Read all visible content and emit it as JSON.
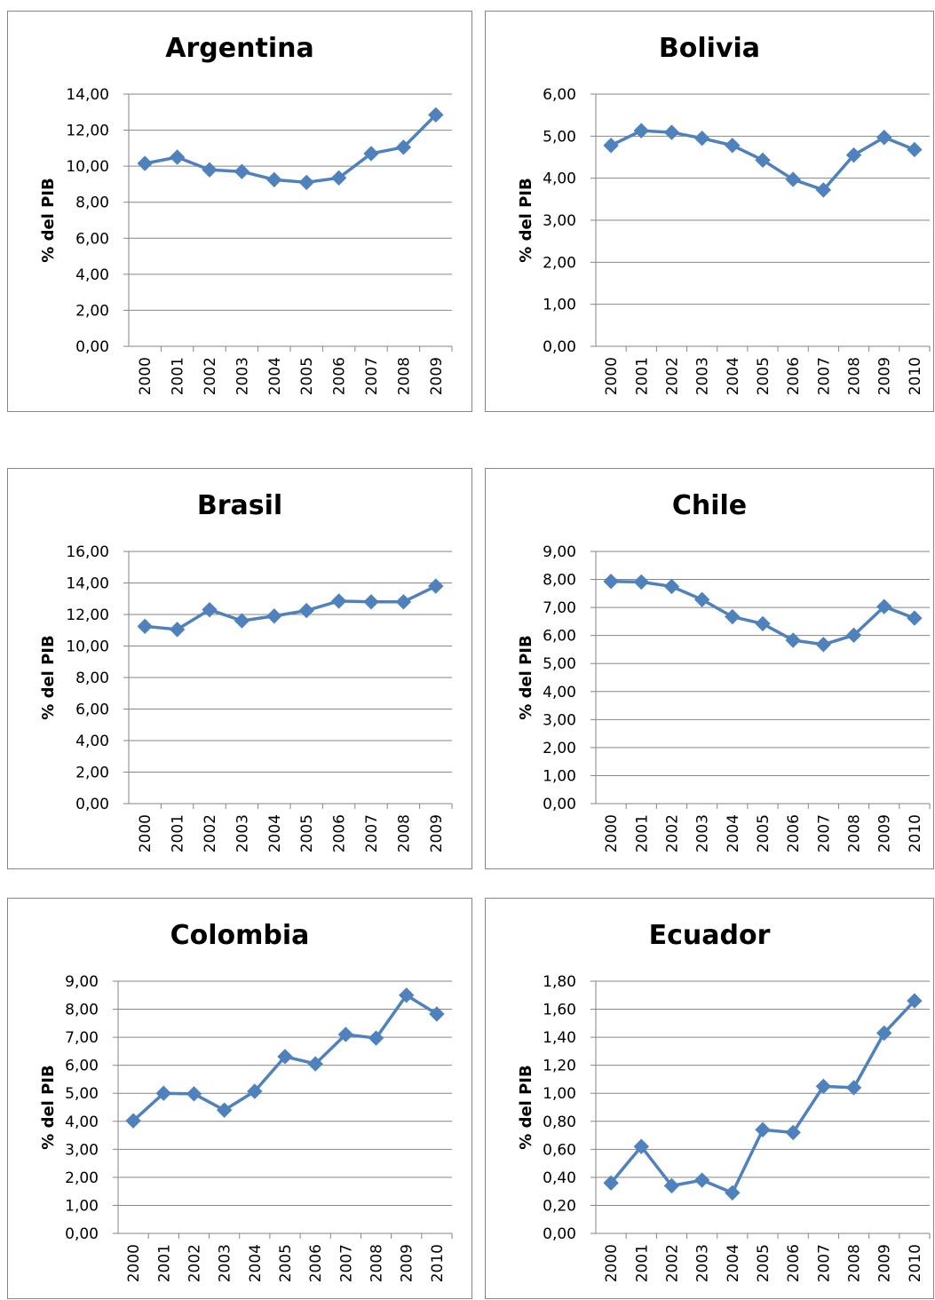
{
  "colors": {
    "series": "#4f81bd",
    "grid": "#868686",
    "axis": "#868686",
    "text": "#000000"
  },
  "chart_data": [
    {
      "type": "line",
      "title": "Argentina",
      "ylabel": "% del PIB",
      "ylim": [
        0,
        14
      ],
      "yticks": [
        "0,00",
        "2,00",
        "4,00",
        "6,00",
        "8,00",
        "10,00",
        "12,00",
        "14,00"
      ],
      "categories": [
        "2000",
        "2001",
        "2002",
        "2003",
        "2004",
        "2005",
        "2006",
        "2007",
        "2008",
        "2009"
      ],
      "values": [
        10.15,
        10.5,
        9.8,
        9.7,
        9.25,
        9.1,
        9.35,
        10.7,
        11.05,
        12.85
      ],
      "grid": true,
      "marker": "diamond"
    },
    {
      "type": "line",
      "title": "Bolivia",
      "ylabel": "% del PIB",
      "ylim": [
        0,
        6
      ],
      "yticks": [
        "0,00",
        "1,00",
        "2,00",
        "3,00",
        "4,00",
        "5,00",
        "6,00"
      ],
      "categories": [
        "2000",
        "2001",
        "2002",
        "2003",
        "2004",
        "2005",
        "2006",
        "2007",
        "2008",
        "2009",
        "2010"
      ],
      "values": [
        4.78,
        5.13,
        5.09,
        4.95,
        4.78,
        4.43,
        3.97,
        3.72,
        4.55,
        4.97,
        4.68
      ],
      "grid": true,
      "marker": "diamond"
    },
    {
      "type": "line",
      "title": "Brasil",
      "ylabel": "% del PIB",
      "ylim": [
        0,
        16
      ],
      "yticks": [
        "0,00",
        "2,00",
        "4,00",
        "6,00",
        "8,00",
        "10,00",
        "12,00",
        "14,00",
        "16,00"
      ],
      "categories": [
        "2000",
        "2001",
        "2002",
        "2003",
        "2004",
        "2005",
        "2006",
        "2007",
        "2008",
        "2009"
      ],
      "values": [
        11.25,
        11.05,
        12.3,
        11.6,
        11.9,
        12.25,
        12.85,
        12.8,
        12.8,
        13.8
      ],
      "grid": true,
      "marker": "diamond"
    },
    {
      "type": "line",
      "title": "Chile",
      "ylabel": "% del PIB",
      "ylim": [
        0,
        9
      ],
      "yticks": [
        "0,00",
        "1,00",
        "2,00",
        "3,00",
        "4,00",
        "5,00",
        "6,00",
        "7,00",
        "8,00",
        "9,00"
      ],
      "categories": [
        "2000",
        "2001",
        "2002",
        "2003",
        "2004",
        "2005",
        "2006",
        "2007",
        "2008",
        "2009",
        "2010"
      ],
      "values": [
        7.93,
        7.91,
        7.75,
        7.28,
        6.67,
        6.42,
        5.83,
        5.68,
        6.01,
        7.03,
        6.62
      ],
      "grid": true,
      "marker": "diamond"
    },
    {
      "type": "line",
      "title": "Colombia",
      "ylabel": "% del PIB",
      "ylim": [
        0,
        9
      ],
      "yticks": [
        "0,00",
        "1,00",
        "2,00",
        "3,00",
        "4,00",
        "5,00",
        "6,00",
        "7,00",
        "8,00",
        "9,00"
      ],
      "categories": [
        "2000",
        "2001",
        "2002",
        "2003",
        "2004",
        "2005",
        "2006",
        "2007",
        "2008",
        "2009",
        "2010"
      ],
      "values": [
        4.02,
        5.0,
        4.98,
        4.4,
        5.07,
        6.31,
        6.05,
        7.1,
        6.97,
        8.5,
        7.83
      ],
      "grid": true,
      "marker": "diamond"
    },
    {
      "type": "line",
      "title": "Ecuador",
      "ylabel": "% del PIB",
      "ylim": [
        0,
        1.8
      ],
      "yticks": [
        "0,00",
        "0,20",
        "0,40",
        "0,60",
        "0,80",
        "1,00",
        "1,20",
        "1,40",
        "1,60",
        "1,80"
      ],
      "categories": [
        "2000",
        "2001",
        "2002",
        "2003",
        "2004",
        "2005",
        "2006",
        "2007",
        "2008",
        "2009",
        "2010"
      ],
      "values": [
        0.36,
        0.62,
        0.34,
        0.38,
        0.29,
        0.74,
        0.72,
        1.05,
        1.04,
        1.43,
        1.66
      ],
      "grid": true,
      "marker": "diamond"
    }
  ]
}
